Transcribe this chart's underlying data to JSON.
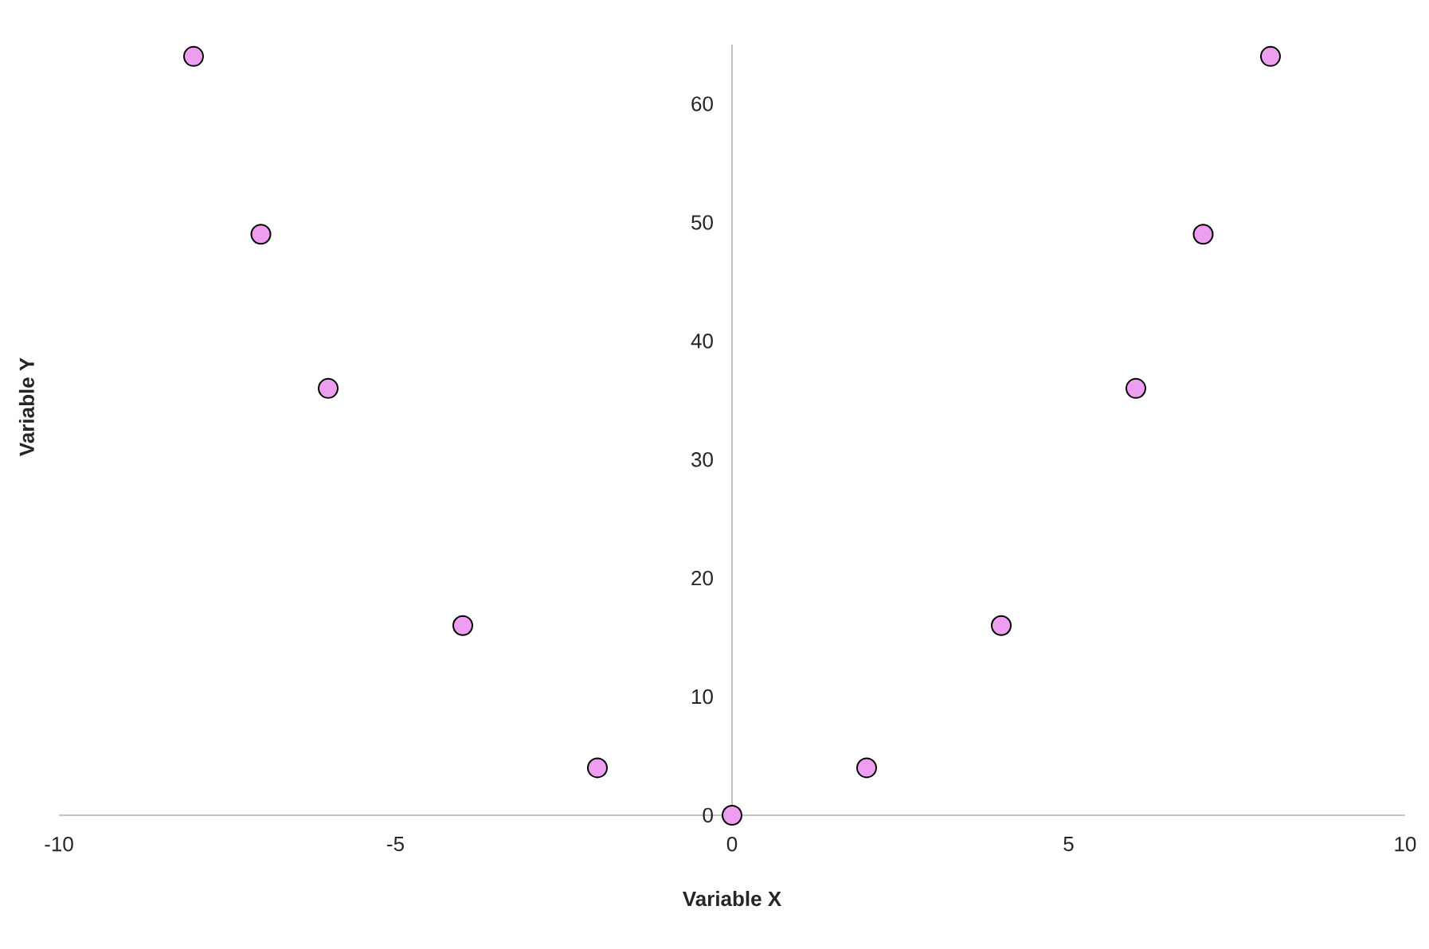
{
  "chart_data": {
    "type": "scatter",
    "xlabel": "Variable X",
    "ylabel": "Variable Y",
    "x": [
      -8,
      -7,
      -6,
      -4,
      -2,
      0,
      2,
      4,
      6,
      7,
      8
    ],
    "values": [
      64,
      49,
      36,
      16,
      4,
      0,
      4,
      16,
      36,
      49,
      64
    ],
    "color": "#ee9ef0",
    "marker": "circle",
    "xlim": [
      -10,
      10
    ],
    "ylim": [
      0,
      65
    ],
    "xticks": [
      -10,
      -5,
      0,
      5,
      10
    ],
    "yticks": [
      0,
      10,
      20,
      30,
      40,
      50,
      60
    ]
  }
}
